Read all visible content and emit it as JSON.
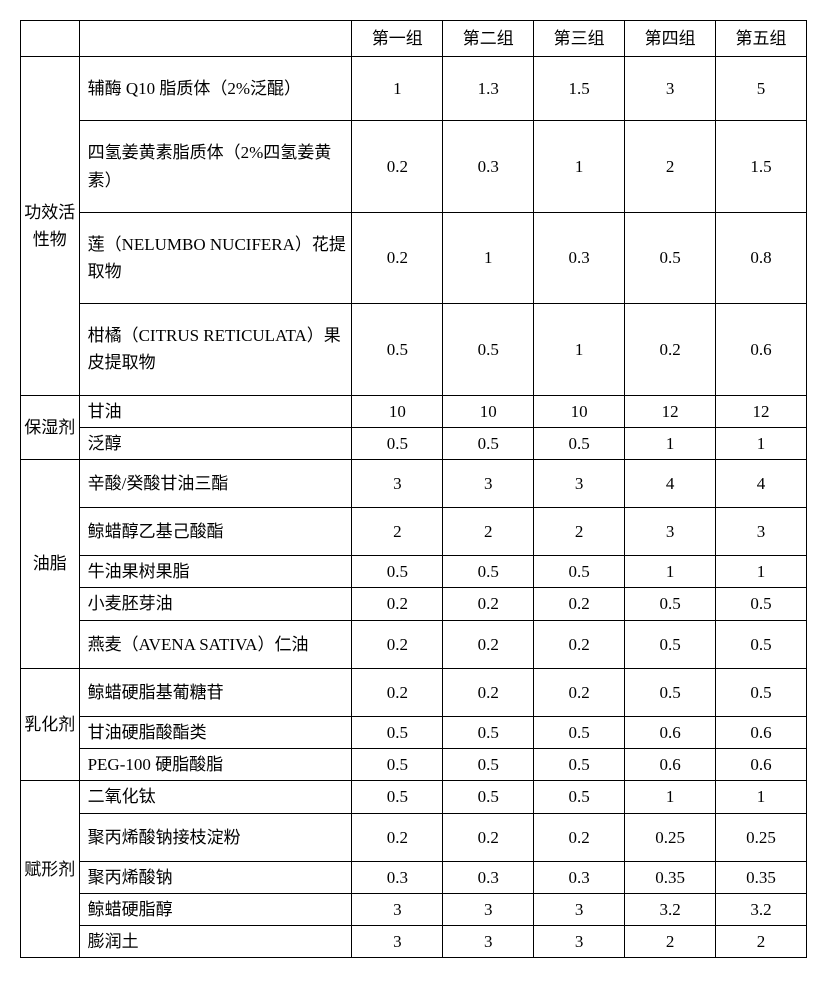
{
  "table": {
    "text_color": "#000000",
    "border_color": "#000000",
    "background_color": "#ffffff",
    "font_family": "SimSun / Songti / serif",
    "base_fontsize_pt": 13,
    "columns": {
      "category_label": "",
      "ingredient_label": "",
      "groups": [
        "第一组",
        "第二组",
        "第三组",
        "第四组",
        "第五组"
      ]
    },
    "sections": [
      {
        "category": "功效活性物",
        "rows": [
          {
            "ingredient": "辅酶 Q10 脂质体（2%泛醌）",
            "values": [
              "1",
              "1.3",
              "1.5",
              "3",
              "5"
            ],
            "row_class": "tall"
          },
          {
            "ingredient": "四氢姜黄素脂质体（2%四氢姜黄素）",
            "values": [
              "0.2",
              "0.3",
              "1",
              "2",
              "1.5"
            ],
            "row_class": "tall"
          },
          {
            "ingredient": "莲（NELUMBO NUCIFERA）花提取物",
            "values": [
              "0.2",
              "1",
              "0.3",
              "0.5",
              "0.8"
            ],
            "row_class": "tall"
          },
          {
            "ingredient": "柑橘（CITRUS RETICULATA）果皮提取物",
            "values": [
              "0.5",
              "0.5",
              "1",
              "0.2",
              "0.6"
            ],
            "row_class": "tall"
          }
        ]
      },
      {
        "category": "保湿剂",
        "rows": [
          {
            "ingredient": "甘油",
            "values": [
              "10",
              "10",
              "10",
              "12",
              "12"
            ],
            "row_class": "tight"
          },
          {
            "ingredient": "泛醇",
            "values": [
              "0.5",
              "0.5",
              "0.5",
              "1",
              "1"
            ],
            "row_class": "tight"
          }
        ]
      },
      {
        "category": "油脂",
        "rows": [
          {
            "ingredient": "辛酸/癸酸甘油三酯",
            "values": [
              "3",
              "3",
              "3",
              "4",
              "4"
            ],
            "row_class": "med"
          },
          {
            "ingredient": "鲸蜡醇乙基己酸酯",
            "values": [
              "2",
              "2",
              "2",
              "3",
              "3"
            ],
            "row_class": "med"
          },
          {
            "ingredient": "牛油果树果脂",
            "values": [
              "0.5",
              "0.5",
              "0.5",
              "1",
              "1"
            ],
            "row_class": "tight"
          },
          {
            "ingredient": "小麦胚芽油",
            "values": [
              "0.2",
              "0.2",
              "0.2",
              "0.5",
              "0.5"
            ],
            "row_class": "tight"
          },
          {
            "ingredient": "燕麦（AVENA SATIVA）仁油",
            "values": [
              "0.2",
              "0.2",
              "0.2",
              "0.5",
              "0.5"
            ],
            "row_class": "med"
          }
        ]
      },
      {
        "category": "乳化剂",
        "rows": [
          {
            "ingredient": "鲸蜡硬脂基葡糖苷",
            "values": [
              "0.2",
              "0.2",
              "0.2",
              "0.5",
              "0.5"
            ],
            "row_class": "med"
          },
          {
            "ingredient": "甘油硬脂酸酯类",
            "values": [
              "0.5",
              "0.5",
              "0.5",
              "0.6",
              "0.6"
            ],
            "row_class": "tight"
          },
          {
            "ingredient": "PEG-100 硬脂酸脂",
            "values": [
              "0.5",
              "0.5",
              "0.5",
              "0.6",
              "0.6"
            ],
            "row_class": "tight"
          }
        ]
      },
      {
        "category": "赋形剂",
        "rows": [
          {
            "ingredient": "二氧化钛",
            "values": [
              "0.5",
              "0.5",
              "0.5",
              "1",
              "1"
            ],
            "row_class": "tight"
          },
          {
            "ingredient": "聚丙烯酸钠接枝淀粉",
            "values": [
              "0.2",
              "0.2",
              "0.2",
              "0.25",
              "0.25"
            ],
            "row_class": "med"
          },
          {
            "ingredient": "聚丙烯酸钠",
            "values": [
              "0.3",
              "0.3",
              "0.3",
              "0.35",
              "0.35"
            ],
            "row_class": "tight"
          },
          {
            "ingredient": "鲸蜡硬脂醇",
            "values": [
              "3",
              "3",
              "3",
              "3.2",
              "3.2"
            ],
            "row_class": "tight"
          },
          {
            "ingredient": "膨润土",
            "values": [
              "3",
              "3",
              "3",
              "2",
              "2"
            ],
            "row_class": "tight"
          }
        ]
      }
    ]
  }
}
